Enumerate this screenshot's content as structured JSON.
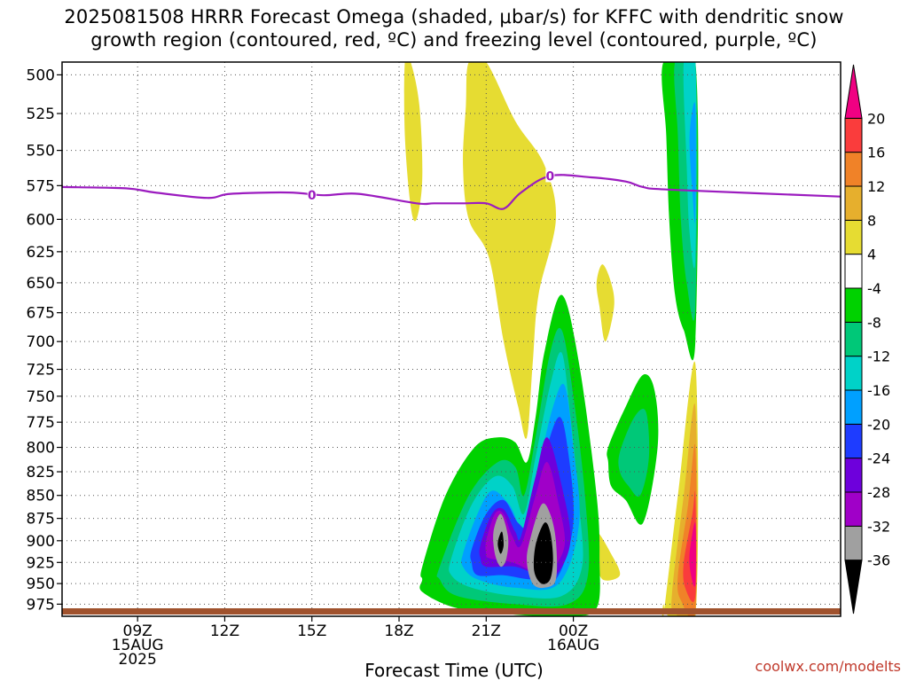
{
  "title": {
    "line1": "2025081508 HRRR Forecast Omega (shaded, μbar/s) for KFFC with dendritic snow",
    "line2": "growth region (contoured, red, ºC) and freezing level (contoured, purple, ºC)"
  },
  "credit": "coolwx.com/modelts",
  "chart_data": {
    "type": "heatmap",
    "title": "2025081508 HRRR Forecast Omega (shaded, μbar/s) for KFFC with dendritic snow growth region (contoured, red, ºC) and freezing level (contoured, purple, ºC)",
    "xlabel": "Forecast Time (UTC)",
    "ylabel": "",
    "x_range_hours": [
      -1.6,
      25.2
    ],
    "x_ticks": [
      {
        "hour": 1,
        "label": "09Z",
        "sub1": "15AUG",
        "sub2": "2025"
      },
      {
        "hour": 4,
        "label": "12Z",
        "sub1": "",
        "sub2": ""
      },
      {
        "hour": 7,
        "label": "15Z",
        "sub1": "",
        "sub2": ""
      },
      {
        "hour": 10,
        "label": "18Z",
        "sub1": "",
        "sub2": ""
      },
      {
        "hour": 13,
        "label": "21Z",
        "sub1": "",
        "sub2": ""
      },
      {
        "hour": 16,
        "label": "00Z",
        "sub1": "16AUG",
        "sub2": ""
      }
    ],
    "y_ticks": [
      500,
      525,
      550,
      575,
      600,
      625,
      650,
      675,
      700,
      725,
      750,
      775,
      800,
      825,
      850,
      875,
      900,
      925,
      950,
      975
    ],
    "y_range_hPa": [
      492,
      990
    ],
    "y_scale": "log-pressure",
    "grid": true,
    "colorbar": {
      "levels": [
        "-36",
        "-32",
        "-28",
        "-24",
        "-20",
        "-16",
        "-12",
        "-8",
        "-4",
        "4",
        "8",
        "12",
        "16",
        "20"
      ],
      "colors": [
        "#000000",
        "#a0a0a0",
        "#a000c8",
        "#6e00dc",
        "#1e3cff",
        "#00a0ff",
        "#00d2c8",
        "#00c878",
        "#00d200",
        "#ffffff",
        "#e6dc32",
        "#e6af2d",
        "#f08228",
        "#fa3c3c",
        "#f00082"
      ]
    },
    "freezing_level": {
      "label": "0",
      "label_points": [
        {
          "hour": 7.0,
          "p": 582
        },
        {
          "hour": 15.2,
          "p": 568
        }
      ],
      "hours": [
        -1.6,
        0.6,
        1.6,
        3.4,
        4.2,
        6.2,
        7.4,
        8.6,
        10.6,
        11.2,
        12.2,
        13.0,
        13.6,
        14.2,
        15.2,
        16.6,
        17.8,
        18.4,
        19.4,
        25.2
      ],
      "pressure": [
        576,
        577,
        580,
        584,
        581,
        580,
        582,
        581,
        588,
        588,
        588,
        588,
        592,
        580,
        568,
        569,
        572,
        576,
        578,
        583
      ]
    },
    "omega_regions": [
      {
        "level": "4",
        "color": "#e6dc32",
        "hours": [
          10.4,
          10.7,
          10.8,
          10.6,
          10.4,
          10.2,
          10.2
        ],
        "pressure": [
          492,
          520,
          570,
          600,
          590,
          540,
          492
        ]
      },
      {
        "level": "4",
        "color": "#e6dc32",
        "hours": [
          12.4,
          13.0,
          14.0,
          15.0,
          15.4,
          14.8,
          14.6,
          14.4,
          14.1,
          13.6,
          13.1,
          12.4,
          12.2,
          12.3
        ],
        "pressure": [
          492,
          492,
          530,
          560,
          600,
          660,
          720,
          790,
          760,
          700,
          630,
          600,
          560,
          520
        ]
      },
      {
        "level": "4",
        "color": "#e6dc32",
        "hours": [
          17.0,
          17.3,
          17.4,
          17.1,
          16.9,
          16.8
        ],
        "pressure": [
          635,
          650,
          670,
          700,
          670,
          650
        ]
      },
      {
        "level": "4",
        "color": "#e6dc32",
        "hours": [
          16.8,
          17.3,
          17.6,
          17.0,
          16.8
        ],
        "pressure": [
          890,
          915,
          940,
          945,
          920
        ]
      },
      {
        "level": "-4",
        "color": "#00d200",
        "hours": [
          10.8,
          11.6,
          12.6,
          13.4,
          14.0,
          14.4,
          14.7,
          15.0,
          15.6,
          16.2,
          16.8,
          16.9,
          16.8,
          15.8,
          14.0,
          12.0,
          10.8,
          10.8
        ],
        "pressure": [
          930,
          850,
          800,
          790,
          795,
          815,
          770,
          710,
          660,
          720,
          850,
          920,
          980,
          990,
          988,
          980,
          960,
          945
        ]
      },
      {
        "level": "-8",
        "color": "#00c878",
        "hours": [
          11.4,
          12.4,
          13.4,
          14.0,
          14.3,
          14.7,
          15.2,
          15.6,
          16.0,
          16.4,
          16.5,
          15.8,
          14.0,
          12.0,
          11.4
        ],
        "pressure": [
          930,
          850,
          815,
          820,
          850,
          790,
          710,
          690,
          750,
          850,
          940,
          975,
          975,
          965,
          945
        ]
      },
      {
        "level": "-12",
        "color": "#00d2c8",
        "hours": [
          11.8,
          12.5,
          13.3,
          13.9,
          14.3,
          14.7,
          15.2,
          15.6,
          15.9,
          16.2,
          16.3,
          15.6,
          14.0,
          12.5,
          11.8
        ],
        "pressure": [
          920,
          860,
          830,
          840,
          870,
          810,
          740,
          710,
          770,
          860,
          930,
          965,
          965,
          955,
          940
        ]
      },
      {
        "level": "-16",
        "color": "#00a0ff",
        "hours": [
          12.2,
          12.7,
          13.2,
          13.8,
          14.3,
          14.8,
          15.3,
          15.7,
          16.0,
          16.2,
          15.5,
          14.0,
          12.7,
          12.2
        ],
        "pressure": [
          915,
          870,
          845,
          860,
          885,
          820,
          760,
          740,
          800,
          880,
          950,
          955,
          945,
          930
        ]
      },
      {
        "level": "-20",
        "color": "#1e3cff",
        "hours": [
          12.5,
          13.0,
          13.6,
          14.1,
          14.5,
          15.0,
          15.5,
          15.8,
          16.0,
          15.4,
          14.5,
          13.6,
          12.7,
          12.5
        ],
        "pressure": [
          910,
          870,
          855,
          880,
          880,
          810,
          770,
          800,
          880,
          945,
          945,
          940,
          940,
          925
        ]
      },
      {
        "level": "-24",
        "color": "#6e00dc",
        "hours": [
          12.8,
          13.2,
          13.6,
          14.0,
          14.2,
          14.7,
          15.1,
          15.6,
          15.9,
          15.4,
          14.8,
          14.0,
          13.0,
          12.8
        ],
        "pressure": [
          905,
          870,
          865,
          890,
          895,
          830,
          790,
          840,
          900,
          940,
          940,
          930,
          930,
          920
        ]
      },
      {
        "level": "-28",
        "color": "#a000c8",
        "hours": [
          13.0,
          13.3,
          13.6,
          13.9,
          14.2,
          14.7,
          15.1,
          15.5,
          15.7,
          15.2,
          14.6,
          13.9,
          13.1,
          13.0
        ],
        "pressure": [
          900,
          870,
          870,
          895,
          905,
          850,
          815,
          860,
          905,
          935,
          935,
          925,
          920,
          915
        ]
      },
      {
        "level": "-32",
        "color": "#a0a0a0",
        "hours": [
          13.25,
          13.5,
          13.75,
          13.7,
          13.5,
          13.3
        ],
        "pressure": [
          890,
          870,
          895,
          920,
          930,
          915
        ]
      },
      {
        "level": "-32",
        "color": "#a0a0a0",
        "hours": [
          14.5,
          14.9,
          15.2,
          15.4,
          15.4,
          15.0,
          14.6,
          14.4
        ],
        "pressure": [
          900,
          860,
          870,
          900,
          945,
          955,
          950,
          925
        ]
      },
      {
        "level": "-36",
        "color": "#000000",
        "hours": [
          13.45,
          13.55,
          13.6,
          13.5,
          13.4
        ],
        "pressure": [
          895,
          890,
          905,
          915,
          905
        ]
      },
      {
        "level": "-36",
        "color": "#000000",
        "hours": [
          14.7,
          15.0,
          15.2,
          15.3,
          15.2,
          14.9,
          14.65
        ],
        "pressure": [
          905,
          880,
          890,
          920,
          945,
          950,
          935
        ]
      },
      {
        "level": "-4",
        "color": "#00d200",
        "hours": [
          17.2,
          17.8,
          18.4,
          18.8,
          18.9,
          18.4,
          17.8,
          17.3,
          17.2
        ],
        "pressure": [
          800,
          760,
          730,
          745,
          800,
          880,
          855,
          840,
          815
        ]
      },
      {
        "level": "-8",
        "color": "#00c878",
        "hours": [
          17.6,
          18.1,
          18.5,
          18.6,
          18.3,
          17.9,
          17.6
        ],
        "pressure": [
          805,
          770,
          765,
          810,
          850,
          840,
          825
        ]
      },
      {
        "level": "-4",
        "color": "#00d200",
        "hours": [
          19.1,
          20.2,
          20.2,
          19.8,
          19.5,
          19.3,
          19.2
        ],
        "pressure": [
          492,
          492,
          700,
          690,
          660,
          600,
          540
        ]
      },
      {
        "level": "-8",
        "color": "#00c878",
        "hours": [
          19.5,
          20.2,
          20.2,
          19.9,
          19.7,
          19.6
        ],
        "pressure": [
          492,
          492,
          670,
          650,
          600,
          540
        ]
      },
      {
        "level": "-12",
        "color": "#00d2c8",
        "hours": [
          19.8,
          20.2,
          20.2,
          20.0,
          19.9
        ],
        "pressure": [
          492,
          492,
          630,
          610,
          560
        ]
      },
      {
        "level": "-16",
        "color": "#00a0ff",
        "hours": [
          20.0,
          20.2,
          20.2,
          20.1
        ],
        "pressure": [
          540,
          520,
          600,
          580
        ]
      },
      {
        "level": "4",
        "color": "#e6dc32",
        "hours": [
          19.1,
          19.6,
          20.2,
          20.2,
          19.3,
          19.1
        ],
        "pressure": [
          990,
          850,
          720,
          990,
          990,
          975
        ]
      },
      {
        "level": "8",
        "color": "#e6af2d",
        "hours": [
          19.4,
          19.8,
          20.2,
          20.2,
          19.5
        ],
        "pressure": [
          960,
          850,
          760,
          990,
          985
        ]
      },
      {
        "level": "12",
        "color": "#f08228",
        "hours": [
          19.6,
          19.95,
          20.2,
          20.2,
          19.7
        ],
        "pressure": [
          940,
          860,
          800,
          980,
          970
        ]
      },
      {
        "level": "16",
        "color": "#fa3c3c",
        "hours": [
          19.8,
          20.1,
          20.2,
          20.2,
          19.85
        ],
        "pressure": [
          925,
          870,
          850,
          965,
          955
        ]
      },
      {
        "level": "20",
        "color": "#f00082",
        "hours": [
          20.0,
          20.2,
          20.2,
          20.05
        ],
        "pressure": [
          915,
          880,
          950,
          940
        ]
      }
    ]
  }
}
